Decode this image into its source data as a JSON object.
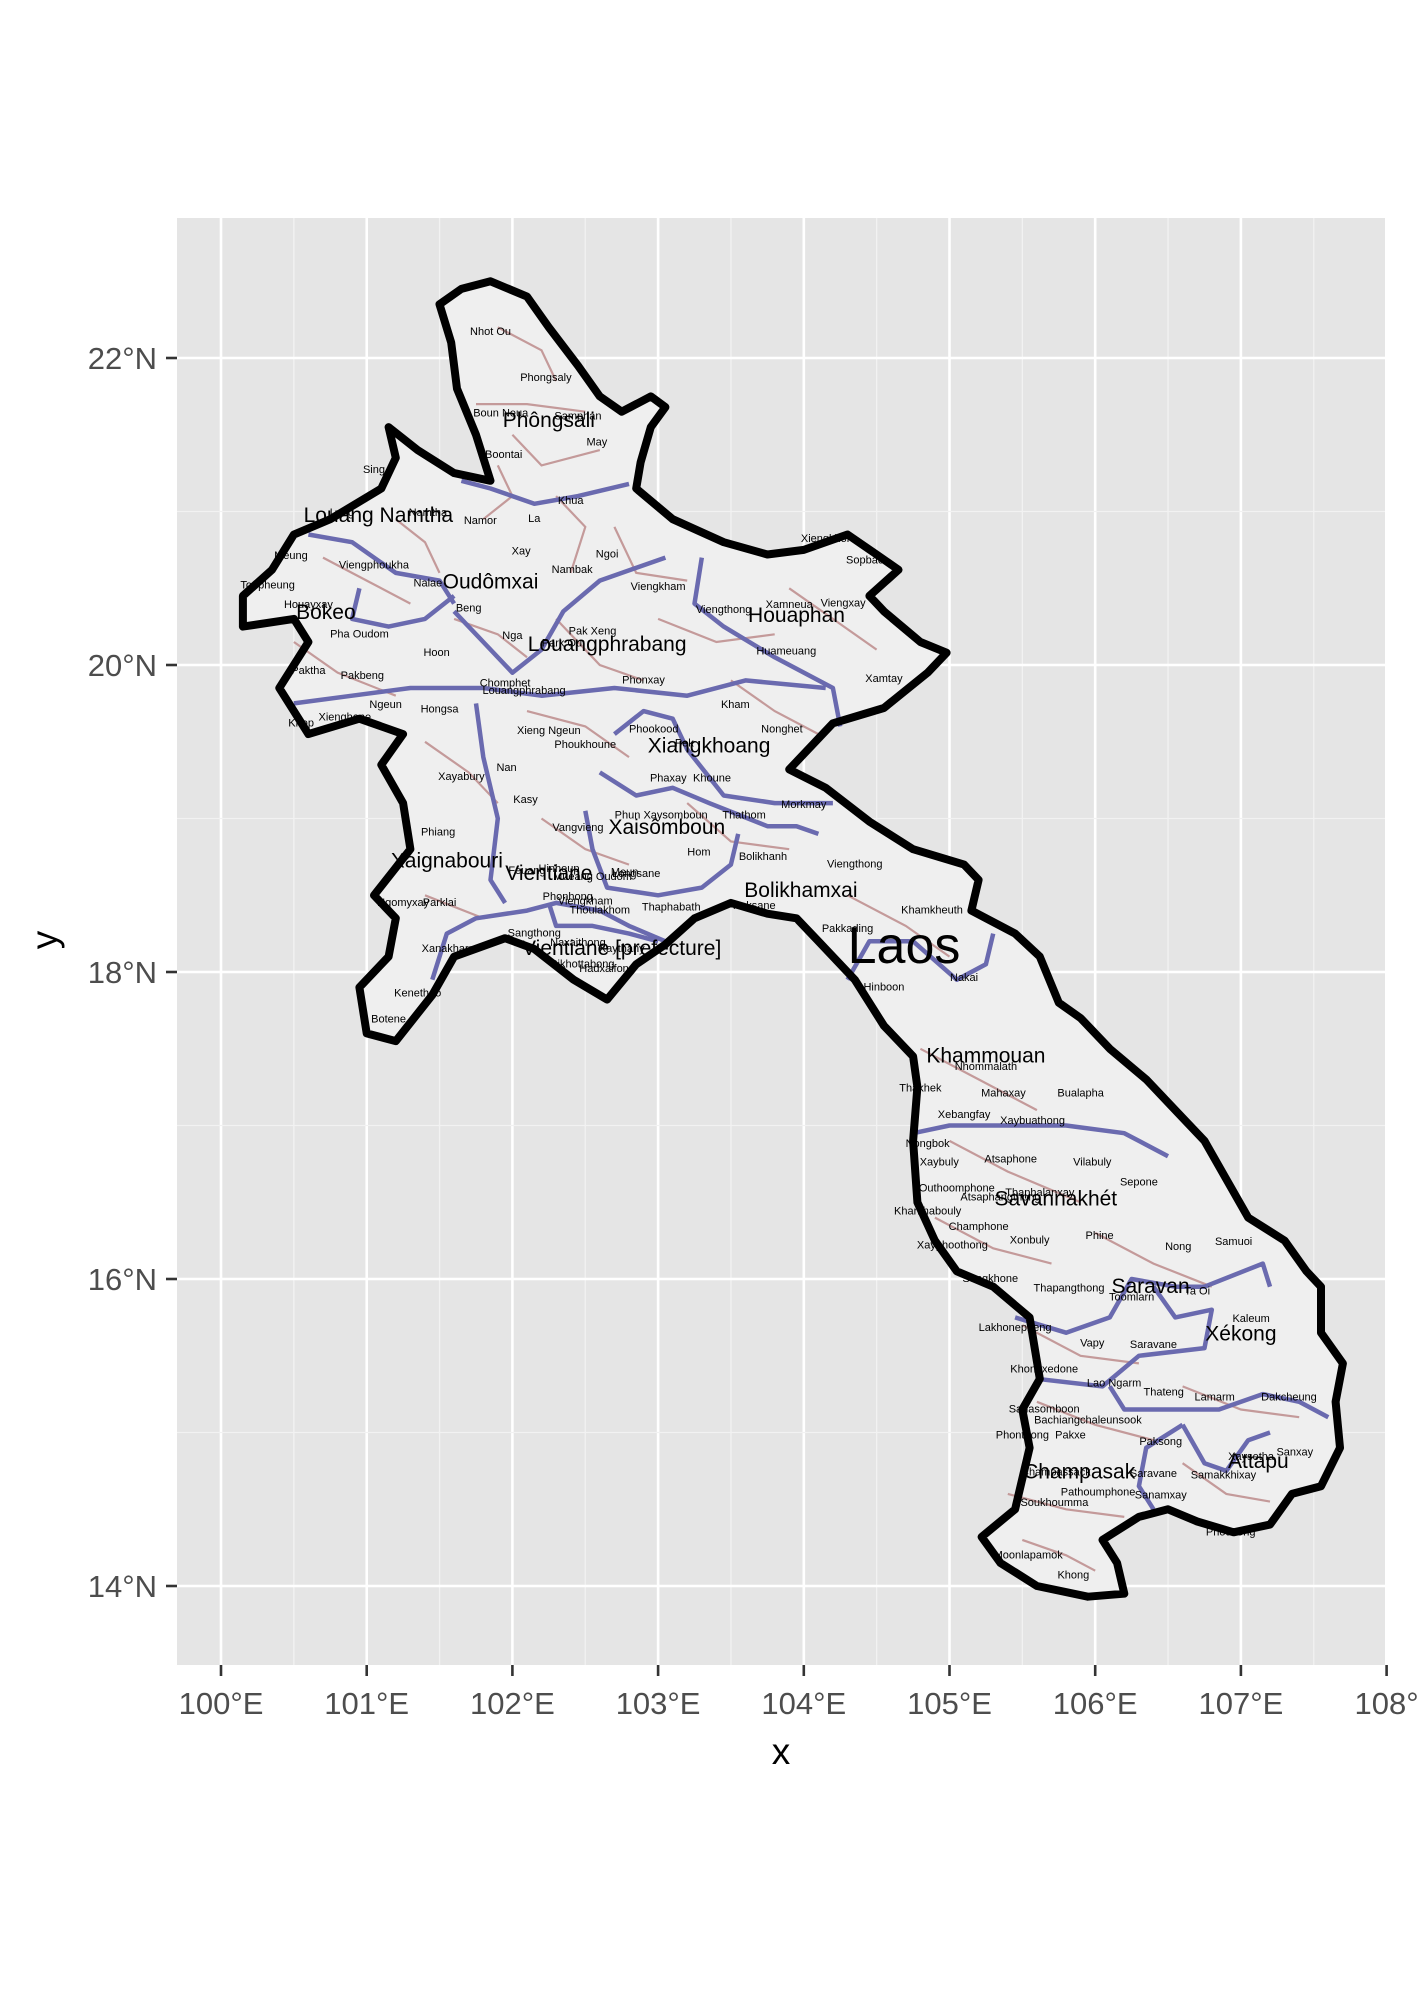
{
  "map": {
    "axis_x_title": "x",
    "axis_y_title": "y",
    "x_ticks": [
      "100°E",
      "101°E",
      "102°E",
      "103°E",
      "104°E",
      "105°E",
      "106°E",
      "107°E",
      "108°"
    ],
    "y_ticks": [
      "22°N",
      "20°N",
      "18°N",
      "16°N",
      "14°N"
    ],
    "lon_range": [
      99.7,
      108.0
    ],
    "lat_range": [
      13.5,
      22.9
    ],
    "grid": true,
    "colors": {
      "panel": "#e5e5e5",
      "grid": "#ffffff",
      "country_border": "#000000",
      "province_border": "#6a6aaf",
      "district_border": "#c49a9a",
      "country_fill": "#f2f2f2"
    },
    "country_name": "Laos",
    "provinces": [
      {
        "name": "Phôngsali",
        "lon": 102.25,
        "lat": 21.55
      },
      {
        "name": "Louang Namtha",
        "lon": 101.08,
        "lat": 20.93
      },
      {
        "name": "Oudômxai",
        "lon": 101.85,
        "lat": 20.5
      },
      {
        "name": "Bokeo",
        "lon": 100.72,
        "lat": 20.3
      },
      {
        "name": "Louangphrabang",
        "lon": 102.65,
        "lat": 20.09
      },
      {
        "name": "Houaphan",
        "lon": 103.95,
        "lat": 20.28
      },
      {
        "name": "Xiangkhoang",
        "lon": 103.35,
        "lat": 19.43
      },
      {
        "name": "Xaisômboun",
        "lon": 103.06,
        "lat": 18.9
      },
      {
        "name": "Xaignabouri",
        "lon": 101.55,
        "lat": 18.68
      },
      {
        "name": "Vientiane",
        "lon": 102.25,
        "lat": 18.6
      },
      {
        "name": "Bolikhamxai",
        "lon": 103.98,
        "lat": 18.49
      },
      {
        "name": "Vientiane [prefecture]",
        "lon": 102.75,
        "lat": 18.11
      },
      {
        "name": "Khammouan",
        "lon": 105.25,
        "lat": 17.41
      },
      {
        "name": "Savannakhét",
        "lon": 105.73,
        "lat": 16.48
      },
      {
        "name": "Saravan",
        "lon": 106.38,
        "lat": 15.91
      },
      {
        "name": "Xékong",
        "lon": 107.0,
        "lat": 15.6
      },
      {
        "name": "Champasak",
        "lon": 105.89,
        "lat": 14.7
      },
      {
        "name": "Attapu",
        "lon": 107.12,
        "lat": 14.77
      }
    ],
    "districts": [
      {
        "name": "Nhot Ou",
        "lon": 101.85,
        "lat": 22.15
      },
      {
        "name": "Phongsaly",
        "lon": 102.23,
        "lat": 21.85
      },
      {
        "name": "Boun Neua",
        "lon": 101.92,
        "lat": 21.62
      },
      {
        "name": "Samphan",
        "lon": 102.45,
        "lat": 21.6
      },
      {
        "name": "May",
        "lon": 102.58,
        "lat": 21.43
      },
      {
        "name": "Boontai",
        "lon": 101.94,
        "lat": 21.35
      },
      {
        "name": "Khua",
        "lon": 102.4,
        "lat": 21.05
      },
      {
        "name": "Sing",
        "lon": 101.05,
        "lat": 21.25
      },
      {
        "name": "Long",
        "lon": 100.83,
        "lat": 20.97
      },
      {
        "name": "Namtha",
        "lon": 101.42,
        "lat": 20.97
      },
      {
        "name": "Namor",
        "lon": 101.78,
        "lat": 20.92
      },
      {
        "name": "La",
        "lon": 102.15,
        "lat": 20.93
      },
      {
        "name": "Ngoi",
        "lon": 102.65,
        "lat": 20.7
      },
      {
        "name": "Xay",
        "lon": 102.06,
        "lat": 20.72
      },
      {
        "name": "Meung",
        "lon": 100.48,
        "lat": 20.69
      },
      {
        "name": "Viengphoukha",
        "lon": 101.05,
        "lat": 20.63
      },
      {
        "name": "Nalae",
        "lon": 101.42,
        "lat": 20.51
      },
      {
        "name": "Nambak",
        "lon": 102.41,
        "lat": 20.6
      },
      {
        "name": "Viengkham",
        "lon": 103.0,
        "lat": 20.49
      },
      {
        "name": "Xiengkhor",
        "lon": 104.15,
        "lat": 20.8
      },
      {
        "name": "Sopbao",
        "lon": 104.42,
        "lat": 20.66
      },
      {
        "name": "Viengthong",
        "lon": 103.45,
        "lat": 20.34
      },
      {
        "name": "Xamneua",
        "lon": 103.9,
        "lat": 20.37
      },
      {
        "name": "Viengxay",
        "lon": 104.27,
        "lat": 20.38
      },
      {
        "name": "Tonpheung",
        "lon": 100.32,
        "lat": 20.5
      },
      {
        "name": "Houayxay",
        "lon": 100.6,
        "lat": 20.37
      },
      {
        "name": "Beng",
        "lon": 101.7,
        "lat": 20.35
      },
      {
        "name": "Pak Xeng",
        "lon": 102.55,
        "lat": 20.2
      },
      {
        "name": "Pha Oudom",
        "lon": 100.95,
        "lat": 20.18
      },
      {
        "name": "Nga",
        "lon": 102.0,
        "lat": 20.17
      },
      {
        "name": "Park Ou",
        "lon": 102.34,
        "lat": 20.12
      },
      {
        "name": "Hoon",
        "lon": 101.48,
        "lat": 20.06
      },
      {
        "name": "Huameuang",
        "lon": 103.88,
        "lat": 20.07
      },
      {
        "name": "Paktha",
        "lon": 100.6,
        "lat": 19.94
      },
      {
        "name": "Pakbeng",
        "lon": 100.97,
        "lat": 19.91
      },
      {
        "name": "Phonxay",
        "lon": 102.9,
        "lat": 19.88
      },
      {
        "name": "Xamtay",
        "lon": 104.55,
        "lat": 19.89
      },
      {
        "name": "Chomphet",
        "lon": 101.95,
        "lat": 19.86
      },
      {
        "name": "Louangphrabang",
        "lon": 102.08,
        "lat": 19.81
      },
      {
        "name": "Kham",
        "lon": 103.53,
        "lat": 19.72
      },
      {
        "name": "Ngeun",
        "lon": 101.13,
        "lat": 19.72
      },
      {
        "name": "Hongsa",
        "lon": 101.5,
        "lat": 19.69
      },
      {
        "name": "Xienghone",
        "lon": 100.85,
        "lat": 19.64
      },
      {
        "name": "Khop",
        "lon": 100.55,
        "lat": 19.6
      },
      {
        "name": "Xieng Ngeun",
        "lon": 102.25,
        "lat": 19.55
      },
      {
        "name": "Phookood",
        "lon": 102.97,
        "lat": 19.56
      },
      {
        "name": "Nonghet",
        "lon": 103.85,
        "lat": 19.56
      },
      {
        "name": "Pek",
        "lon": 103.18,
        "lat": 19.47
      },
      {
        "name": "Phoukhoune",
        "lon": 102.5,
        "lat": 19.46
      },
      {
        "name": "Xayabury",
        "lon": 101.65,
        "lat": 19.25
      },
      {
        "name": "Nan",
        "lon": 101.96,
        "lat": 19.31
      },
      {
        "name": "Phaxay",
        "lon": 103.07,
        "lat": 19.24
      },
      {
        "name": "Khoune",
        "lon": 103.37,
        "lat": 19.24
      },
      {
        "name": "Kasy",
        "lon": 102.09,
        "lat": 19.1
      },
      {
        "name": "Morkmay",
        "lon": 104.0,
        "lat": 19.07
      },
      {
        "name": "Phun",
        "lon": 102.79,
        "lat": 19.0
      },
      {
        "name": "Xaysomboun",
        "lon": 103.12,
        "lat": 19.0
      },
      {
        "name": "Thathom",
        "lon": 103.59,
        "lat": 19.0
      },
      {
        "name": "Vangvieng",
        "lon": 102.45,
        "lat": 18.92
      },
      {
        "name": "Phiang",
        "lon": 101.49,
        "lat": 18.89
      },
      {
        "name": "Hom",
        "lon": 103.28,
        "lat": 18.76
      },
      {
        "name": "Bolikhanh",
        "lon": 103.72,
        "lat": 18.73
      },
      {
        "name": "Viengthong",
        "lon": 104.35,
        "lat": 18.68
      },
      {
        "name": "Hinheup",
        "lon": 102.32,
        "lat": 18.65
      },
      {
        "name": "Feuang",
        "lon": 102.1,
        "lat": 18.64
      },
      {
        "name": "Meun",
        "lon": 102.77,
        "lat": 18.63
      },
      {
        "name": "Longsane",
        "lon": 102.85,
        "lat": 18.62
      },
      {
        "name": "Mueang Oudom",
        "lon": 102.55,
        "lat": 18.6
      },
      {
        "name": "Khamkheuth",
        "lon": 104.88,
        "lat": 18.38
      },
      {
        "name": "Ngomyxay",
        "lon": 101.25,
        "lat": 18.43
      },
      {
        "name": "Parklai",
        "lon": 101.5,
        "lat": 18.43
      },
      {
        "name": "Viengkham",
        "lon": 102.5,
        "lat": 18.44
      },
      {
        "name": "Phonhong",
        "lon": 102.38,
        "lat": 18.47
      },
      {
        "name": "Thoulakhom",
        "lon": 102.6,
        "lat": 18.38
      },
      {
        "name": "Thaphabath",
        "lon": 103.09,
        "lat": 18.4
      },
      {
        "name": "Paksane",
        "lon": 103.66,
        "lat": 18.41
      },
      {
        "name": "Pakkading",
        "lon": 104.3,
        "lat": 18.26
      },
      {
        "name": "Sangthong",
        "lon": 102.15,
        "lat": 18.23
      },
      {
        "name": "Naxaithong",
        "lon": 102.45,
        "lat": 18.17
      },
      {
        "name": "Xanakharm",
        "lon": 101.57,
        "lat": 18.13
      },
      {
        "name": "Xaythany",
        "lon": 102.75,
        "lat": 18.13
      },
      {
        "name": "Sikhottabong",
        "lon": 102.48,
        "lat": 18.03
      },
      {
        "name": "Hadxaifong",
        "lon": 102.65,
        "lat": 18.0
      },
      {
        "name": "Nakai",
        "lon": 105.1,
        "lat": 17.94
      },
      {
        "name": "Hinboon",
        "lon": 104.55,
        "lat": 17.88
      },
      {
        "name": "Kenethao",
        "lon": 101.35,
        "lat": 17.84
      },
      {
        "name": "Botene",
        "lon": 101.15,
        "lat": 17.67
      },
      {
        "name": "Nhommalath",
        "lon": 105.25,
        "lat": 17.36
      },
      {
        "name": "Mahaxay",
        "lon": 105.37,
        "lat": 17.19
      },
      {
        "name": "Thakhek",
        "lon": 104.8,
        "lat": 17.22
      },
      {
        "name": "Bualapha",
        "lon": 105.9,
        "lat": 17.19
      },
      {
        "name": "Xebangfay",
        "lon": 105.1,
        "lat": 17.05
      },
      {
        "name": "Xaybuathong",
        "lon": 105.57,
        "lat": 17.01
      },
      {
        "name": "Nongbok",
        "lon": 104.85,
        "lat": 16.86
      },
      {
        "name": "Xaybuly",
        "lon": 104.93,
        "lat": 16.74
      },
      {
        "name": "Atsaphone",
        "lon": 105.42,
        "lat": 16.76
      },
      {
        "name": "Vilabuly",
        "lon": 105.98,
        "lat": 16.74
      },
      {
        "name": "Sepone",
        "lon": 106.3,
        "lat": 16.61
      },
      {
        "name": "Outhoomphone",
        "lon": 105.05,
        "lat": 16.57
      },
      {
        "name": "Thaphalanxay",
        "lon": 105.62,
        "lat": 16.54
      },
      {
        "name": "Atsaphangthong",
        "lon": 105.35,
        "lat": 16.51
      },
      {
        "name": "Khanthabouly",
        "lon": 104.85,
        "lat": 16.42
      },
      {
        "name": "Champhone",
        "lon": 105.2,
        "lat": 16.32
      },
      {
        "name": "Phine",
        "lon": 106.03,
        "lat": 16.26
      },
      {
        "name": "Xonbuly",
        "lon": 105.55,
        "lat": 16.23
      },
      {
        "name": "Xayphoothong",
        "lon": 105.02,
        "lat": 16.2
      },
      {
        "name": "Nong",
        "lon": 106.57,
        "lat": 16.19
      },
      {
        "name": "Samuoi",
        "lon": 106.95,
        "lat": 16.22
      },
      {
        "name": "Songkhone",
        "lon": 105.28,
        "lat": 15.98
      },
      {
        "name": "Thapangthong",
        "lon": 105.82,
        "lat": 15.92
      },
      {
        "name": "Ta Oi",
        "lon": 106.7,
        "lat": 15.9
      },
      {
        "name": "Toomlarn",
        "lon": 106.25,
        "lat": 15.86
      },
      {
        "name": "Kaleum",
        "lon": 107.07,
        "lat": 15.72
      },
      {
        "name": "Lakhonepheng",
        "lon": 105.45,
        "lat": 15.66
      },
      {
        "name": "Vapy",
        "lon": 105.98,
        "lat": 15.56
      },
      {
        "name": "Saravane",
        "lon": 106.4,
        "lat": 15.55
      },
      {
        "name": "Khongxedone",
        "lon": 105.65,
        "lat": 15.39
      },
      {
        "name": "Lao Ngarm",
        "lon": 106.13,
        "lat": 15.3
      },
      {
        "name": "Thateng",
        "lon": 106.47,
        "lat": 15.24
      },
      {
        "name": "Lamarm",
        "lon": 106.82,
        "lat": 15.21
      },
      {
        "name": "Dakcheung",
        "lon": 107.33,
        "lat": 15.21
      },
      {
        "name": "Sanasomboon",
        "lon": 105.65,
        "lat": 15.13
      },
      {
        "name": "Bachiangchaleunsook",
        "lon": 105.95,
        "lat": 15.06
      },
      {
        "name": "Phonthong",
        "lon": 105.5,
        "lat": 14.96
      },
      {
        "name": "Pakxe",
        "lon": 105.83,
        "lat": 14.96
      },
      {
        "name": "Paksong",
        "lon": 106.45,
        "lat": 14.92
      },
      {
        "name": "Xaysetha",
        "lon": 107.07,
        "lat": 14.82
      },
      {
        "name": "Sanxay",
        "lon": 107.37,
        "lat": 14.85
      },
      {
        "name": "Saravane",
        "lon": 106.4,
        "lat": 14.71
      },
      {
        "name": "Champassack",
        "lon": 105.73,
        "lat": 14.72
      },
      {
        "name": "Samakkhixay",
        "lon": 106.88,
        "lat": 14.7
      },
      {
        "name": "Sanamxay",
        "lon": 106.45,
        "lat": 14.57
      },
      {
        "name": "Pathoumphone",
        "lon": 106.02,
        "lat": 14.59
      },
      {
        "name": "Soukhoumma",
        "lon": 105.72,
        "lat": 14.52
      },
      {
        "name": "Phouvong",
        "lon": 106.93,
        "lat": 14.33
      },
      {
        "name": "Moonlapamok",
        "lon": 105.54,
        "lat": 14.18
      },
      {
        "name": "Khong",
        "lon": 105.85,
        "lat": 14.05
      }
    ]
  }
}
